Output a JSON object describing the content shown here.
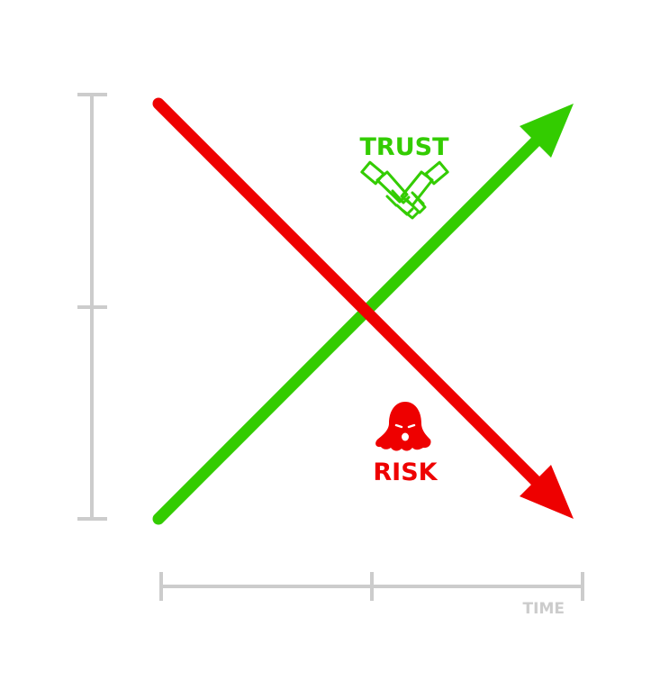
{
  "labels": {
    "trust": "TRUST",
    "risk": "RISK",
    "time": "TIME"
  },
  "icons": {
    "trust_icon": "handshake-icon",
    "risk_icon": "ghost-icon"
  },
  "colors": {
    "trust": "#33cc00",
    "risk": "#ee0000",
    "axis": "#cccccc",
    "time_label": "#cccccc",
    "background": "#ffffff"
  }
}
